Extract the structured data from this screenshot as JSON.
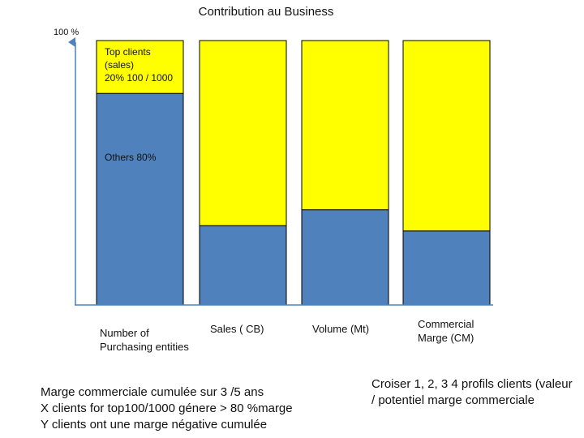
{
  "chart_data": {
    "type": "bar",
    "stacked": true,
    "title": "Contribution au Business",
    "ylabel": "",
    "xlabel": "",
    "ylim": [
      0,
      100
    ],
    "y_max_label": "100 %",
    "categories": [
      "Number  of\nPurchasing entities",
      "Sales ( CB)",
      "Volume  (Mt)",
      "Commercial\nMarge (CM)"
    ],
    "series": [
      {
        "name": "Others",
        "color": "#4F81BD",
        "values": [
          80,
          30,
          36,
          28
        ]
      },
      {
        "name": "Top clients",
        "color": "#FFFF00",
        "values": [
          20,
          70,
          64,
          72
        ]
      }
    ],
    "segment_labels": {
      "top_clients": "Top clients\n(sales)\n20%  100 / 1000",
      "others": "Others  80%"
    }
  },
  "notes": {
    "left": "Marge commerciale cumulée sur 3 /5 ans\n X clients  for top100/1000 génere > 80 %marge\nY clients ont une marge négative cumulée",
    "right": "Croiser 1, 2, 3 4 profils clients (valeur\n/ potentiel marge commerciale"
  },
  "colors": {
    "axis": "#4F81BD",
    "bar_border": "#000000"
  }
}
